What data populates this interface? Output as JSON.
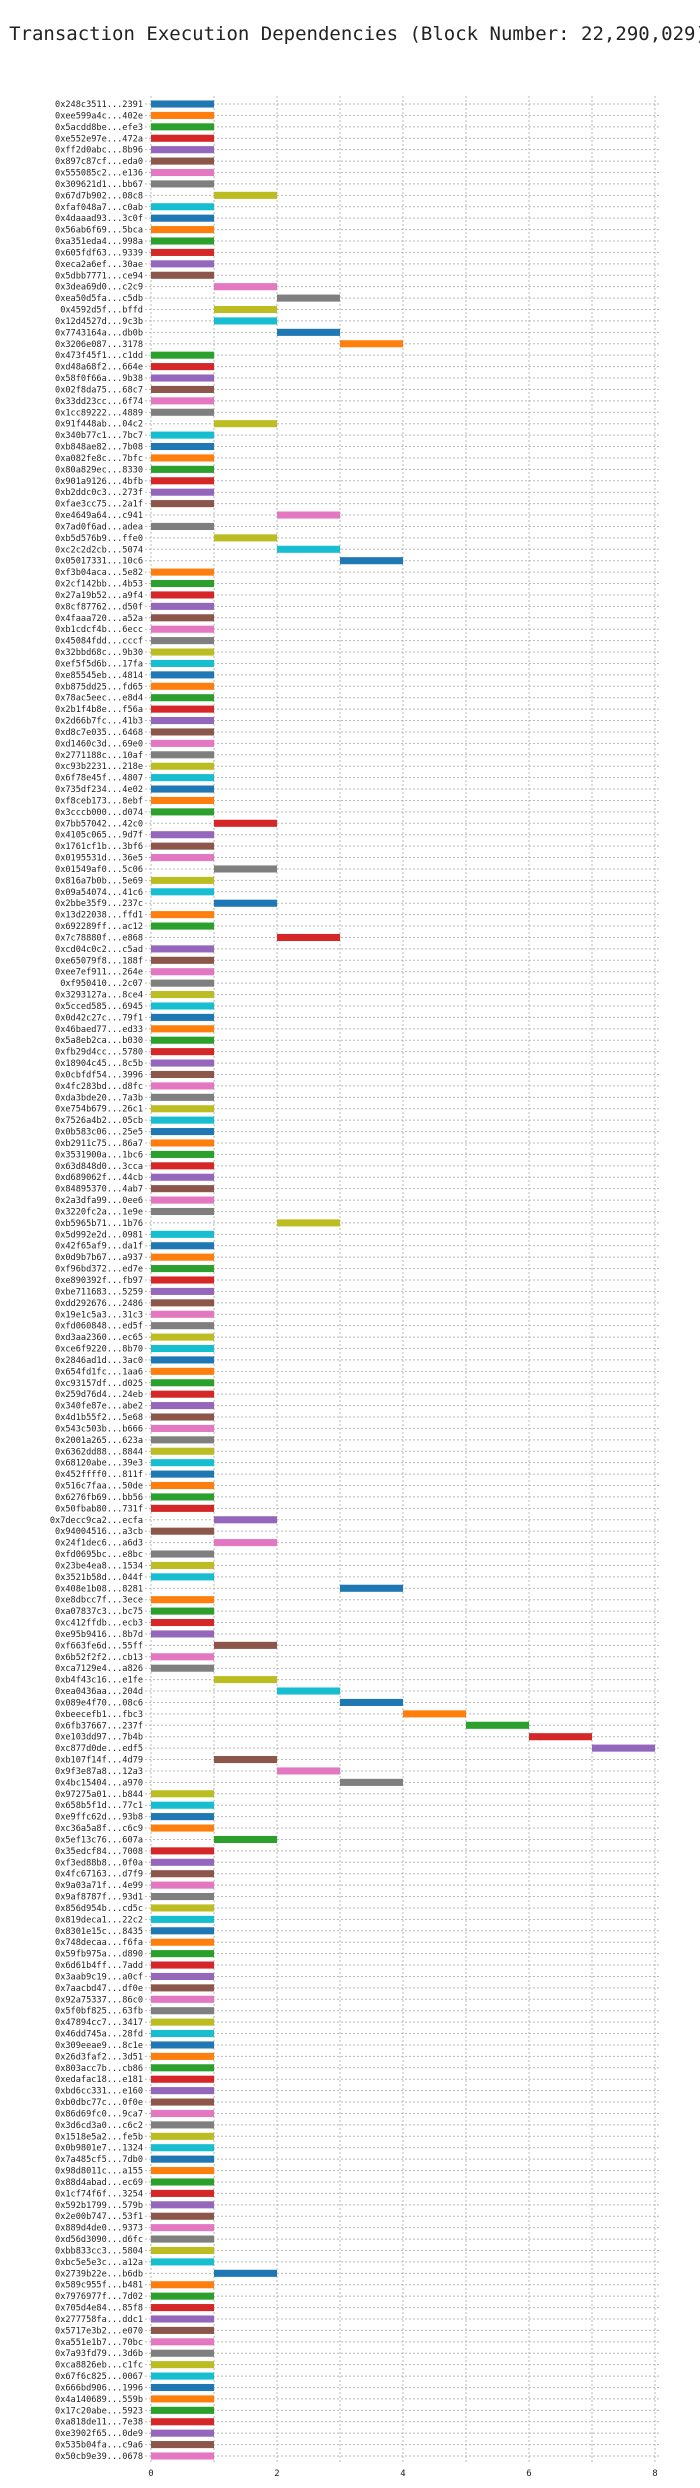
{
  "chart_data": {
    "type": "bar",
    "orientation": "horizontal",
    "title": "Transaction Execution Dependencies (Block Number: 22,290,029)",
    "xlabel": "",
    "ylabel": "",
    "xlim": [
      0,
      8
    ],
    "x_ticks": [
      0,
      2,
      4,
      6,
      8
    ],
    "grid": true,
    "palette": [
      "#1f77b4",
      "#ff7f0e",
      "#2ca02c",
      "#d62728",
      "#9467bd",
      "#8c564b",
      "#e377c2",
      "#7f7f7f",
      "#bcbd22",
      "#17becf"
    ],
    "transactions": [
      {
        "label": "0x248c3511...2391",
        "start": 0,
        "end": 1
      },
      {
        "label": "0xee599a4c...402e",
        "start": 0,
        "end": 1
      },
      {
        "label": "0x5acdd8be...efe3",
        "start": 0,
        "end": 1
      },
      {
        "label": "0xe552e97e...472a",
        "start": 0,
        "end": 1
      },
      {
        "label": "0xff2d0abc...8b96",
        "start": 0,
        "end": 1
      },
      {
        "label": "0x897c87cf...eda0",
        "start": 0,
        "end": 1
      },
      {
        "label": "0x555085c2...e136",
        "start": 0,
        "end": 1
      },
      {
        "label": "0x309621d1...bb67",
        "start": 0,
        "end": 1
      },
      {
        "label": "0x67d7b902...08c8",
        "start": 1,
        "end": 2
      },
      {
        "label": "0xfaf048a7...c0ab",
        "start": 0,
        "end": 1
      },
      {
        "label": "0x4daaad93...3c0f",
        "start": 0,
        "end": 1
      },
      {
        "label": "0x56ab6f69...5bca",
        "start": 0,
        "end": 1
      },
      {
        "label": "0xa351eda4...998a",
        "start": 0,
        "end": 1
      },
      {
        "label": "0x605fdf63...9339",
        "start": 0,
        "end": 1
      },
      {
        "label": "0xeca2a6ef...30ae",
        "start": 0,
        "end": 1
      },
      {
        "label": "0x5dbb7771...ce94",
        "start": 0,
        "end": 1
      },
      {
        "label": "0x3dea69d0...c2c9",
        "start": 1,
        "end": 2
      },
      {
        "label": "0xea50d5fa...c5db",
        "start": 2,
        "end": 3
      },
      {
        "label": "0x4592d5f...bffd",
        "start": 1,
        "end": 2
      },
      {
        "label": "0x12d4527d...9c3b",
        "start": 1,
        "end": 2
      },
      {
        "label": "0x7743164a...db0b",
        "start": 2,
        "end": 3
      },
      {
        "label": "0x3206e087...3178",
        "start": 3,
        "end": 4
      },
      {
        "label": "0x473f45f1...c1dd",
        "start": 0,
        "end": 1
      },
      {
        "label": "0xd48a68f2...664e",
        "start": 0,
        "end": 1
      },
      {
        "label": "0x58f0f66a...9b38",
        "start": 0,
        "end": 1
      },
      {
        "label": "0x02f8da75...68c7",
        "start": 0,
        "end": 1
      },
      {
        "label": "0x33dd23cc...6f74",
        "start": 0,
        "end": 1
      },
      {
        "label": "0x1cc89222...4889",
        "start": 0,
        "end": 1
      },
      {
        "label": "0x91f448ab...04c2",
        "start": 1,
        "end": 2
      },
      {
        "label": "0x340b77c1...7bc7",
        "start": 0,
        "end": 1
      },
      {
        "label": "0xb848ae82...7b08",
        "start": 0,
        "end": 1
      },
      {
        "label": "0xa082fe8c...7bfc",
        "start": 0,
        "end": 1
      },
      {
        "label": "0x80a829ec...8330",
        "start": 0,
        "end": 1
      },
      {
        "label": "0x901a9126...4bfb",
        "start": 0,
        "end": 1
      },
      {
        "label": "0xb2ddc0c3...273f",
        "start": 0,
        "end": 1
      },
      {
        "label": "0xfae3cc75...2a1f",
        "start": 0,
        "end": 1
      },
      {
        "label": "0xe4649a64...c941",
        "start": 2,
        "end": 3
      },
      {
        "label": "0x7ad0f6ad...adea",
        "start": 0,
        "end": 1
      },
      {
        "label": "0xb5d576b9...ffe0",
        "start": 1,
        "end": 2
      },
      {
        "label": "0xc2c2d2cb...5074",
        "start": 2,
        "end": 3
      },
      {
        "label": "0x05017331...10c6",
        "start": 3,
        "end": 4
      },
      {
        "label": "0xf3b04aca...5e82",
        "start": 0,
        "end": 1
      },
      {
        "label": "0x2cf142bb...4b53",
        "start": 0,
        "end": 1
      },
      {
        "label": "0x27a19b52...a9f4",
        "start": 0,
        "end": 1
      },
      {
        "label": "0x8cf87762...d50f",
        "start": 0,
        "end": 1
      },
      {
        "label": "0x4faaa720...a52a",
        "start": 0,
        "end": 1
      },
      {
        "label": "0xb1cdcf4b...6ecc",
        "start": 0,
        "end": 1
      },
      {
        "label": "0x45084fdd...cccf",
        "start": 0,
        "end": 1
      },
      {
        "label": "0x32bbd68c...9b30",
        "start": 0,
        "end": 1
      },
      {
        "label": "0xef5f5d6b...17fa",
        "start": 0,
        "end": 1
      },
      {
        "label": "0xe85545eb...4814",
        "start": 0,
        "end": 1
      },
      {
        "label": "0xb875dd25...fd65",
        "start": 0,
        "end": 1
      },
      {
        "label": "0x78ac5eec...e8d4",
        "start": 0,
        "end": 1
      },
      {
        "label": "0x2b1f4b8e...f56a",
        "start": 0,
        "end": 1
      },
      {
        "label": "0x2d66b7fc...41b3",
        "start": 0,
        "end": 1
      },
      {
        "label": "0xd8c7e035...6468",
        "start": 0,
        "end": 1
      },
      {
        "label": "0xd1460c3d...69e0",
        "start": 0,
        "end": 1
      },
      {
        "label": "0x2771188c...10af",
        "start": 0,
        "end": 1
      },
      {
        "label": "0xc93b2231...218e",
        "start": 0,
        "end": 1
      },
      {
        "label": "0x6f78e45f...4807",
        "start": 0,
        "end": 1
      },
      {
        "label": "0x735df234...4e02",
        "start": 0,
        "end": 1
      },
      {
        "label": "0xf8ceb173...8ebf",
        "start": 0,
        "end": 1
      },
      {
        "label": "0x3cccb000...d074",
        "start": 0,
        "end": 1
      },
      {
        "label": "0x7bb57042...42c0",
        "start": 1,
        "end": 2
      },
      {
        "label": "0x4105c065...9d7f",
        "start": 0,
        "end": 1
      },
      {
        "label": "0x1761cf1b...3bf6",
        "start": 0,
        "end": 1
      },
      {
        "label": "0x0195531d...36e5",
        "start": 0,
        "end": 1
      },
      {
        "label": "0x01549af0...5c06",
        "start": 1,
        "end": 2
      },
      {
        "label": "0x816a7b0b...5e69",
        "start": 0,
        "end": 1
      },
      {
        "label": "0x09a54074...41c6",
        "start": 0,
        "end": 1
      },
      {
        "label": "0x2bbe35f9...237c",
        "start": 1,
        "end": 2
      },
      {
        "label": "0x13d22038...ffd1",
        "start": 0,
        "end": 1
      },
      {
        "label": "0x692289ff...ac12",
        "start": 0,
        "end": 1
      },
      {
        "label": "0x7c78880f...e868",
        "start": 2,
        "end": 3
      },
      {
        "label": "0xcd04c0c2...c5ad",
        "start": 0,
        "end": 1
      },
      {
        "label": "0xe65079f8...188f",
        "start": 0,
        "end": 1
      },
      {
        "label": "0xee7ef911...264e",
        "start": 0,
        "end": 1
      },
      {
        "label": "0xf950410...2c07",
        "start": 0,
        "end": 1
      },
      {
        "label": "0x3293127a...8ce4",
        "start": 0,
        "end": 1
      },
      {
        "label": "0x5cced585...6945",
        "start": 0,
        "end": 1
      },
      {
        "label": "0x0d42c27c...79f1",
        "start": 0,
        "end": 1
      },
      {
        "label": "0x46baed77...ed33",
        "start": 0,
        "end": 1
      },
      {
        "label": "0x5a8eb2ca...b030",
        "start": 0,
        "end": 1
      },
      {
        "label": "0xfb29d4cc...5780",
        "start": 0,
        "end": 1
      },
      {
        "label": "0x18904c45...8c5b",
        "start": 0,
        "end": 1
      },
      {
        "label": "0x0cbfdf54...3996",
        "start": 0,
        "end": 1
      },
      {
        "label": "0x4fc283bd...d8fc",
        "start": 0,
        "end": 1
      },
      {
        "label": "0xda3bde20...7a3b",
        "start": 0,
        "end": 1
      },
      {
        "label": "0xe754b679...26c1",
        "start": 0,
        "end": 1
      },
      {
        "label": "0x7526a4b2...05cb",
        "start": 0,
        "end": 1
      },
      {
        "label": "0x0b583c06...25e5",
        "start": 0,
        "end": 1
      },
      {
        "label": "0xb2911c75...86a7",
        "start": 0,
        "end": 1
      },
      {
        "label": "0x3531900a...1bc6",
        "start": 0,
        "end": 1
      },
      {
        "label": "0x63d848d0...3cca",
        "start": 0,
        "end": 1
      },
      {
        "label": "0xd689062f...44cb",
        "start": 0,
        "end": 1
      },
      {
        "label": "0x84895370...4ab7",
        "start": 0,
        "end": 1
      },
      {
        "label": "0x2a3dfa99...0ee6",
        "start": 0,
        "end": 1
      },
      {
        "label": "0x3220fc2a...1e9e",
        "start": 0,
        "end": 1
      },
      {
        "label": "0xb5965b71...1b76",
        "start": 2,
        "end": 3
      },
      {
        "label": "0x5d992e2d...0981",
        "start": 0,
        "end": 1
      },
      {
        "label": "0x42f65af9...da1f",
        "start": 0,
        "end": 1
      },
      {
        "label": "0x0d9b7b67...a937",
        "start": 0,
        "end": 1
      },
      {
        "label": "0xf96bd372...ed7e",
        "start": 0,
        "end": 1
      },
      {
        "label": "0xe890392f...fb97",
        "start": 0,
        "end": 1
      },
      {
        "label": "0xbe711683...5259",
        "start": 0,
        "end": 1
      },
      {
        "label": "0xdd292676...2486",
        "start": 0,
        "end": 1
      },
      {
        "label": "0x19e1c5a3...31c3",
        "start": 0,
        "end": 1
      },
      {
        "label": "0xfd060848...ed5f",
        "start": 0,
        "end": 1
      },
      {
        "label": "0xd3aa2360...ec65",
        "start": 0,
        "end": 1
      },
      {
        "label": "0xce6f9220...8b70",
        "start": 0,
        "end": 1
      },
      {
        "label": "0x2846ad1d...3ac0",
        "start": 0,
        "end": 1
      },
      {
        "label": "0x654fd1fc...1aa6",
        "start": 0,
        "end": 1
      },
      {
        "label": "0xc93157df...d025",
        "start": 0,
        "end": 1
      },
      {
        "label": "0x259d76d4...24eb",
        "start": 0,
        "end": 1
      },
      {
        "label": "0x340fe87e...abe2",
        "start": 0,
        "end": 1
      },
      {
        "label": "0x4d1b55f2...5e68",
        "start": 0,
        "end": 1
      },
      {
        "label": "0x543c503b...b666",
        "start": 0,
        "end": 1
      },
      {
        "label": "0x2001a265...623a",
        "start": 0,
        "end": 1
      },
      {
        "label": "0x6362dd88...8844",
        "start": 0,
        "end": 1
      },
      {
        "label": "0x68120abe...39e3",
        "start": 0,
        "end": 1
      },
      {
        "label": "0x452ffff0...811f",
        "start": 0,
        "end": 1
      },
      {
        "label": "0x516c7faa...50de",
        "start": 0,
        "end": 1
      },
      {
        "label": "0x6276fb69...bb56",
        "start": 0,
        "end": 1
      },
      {
        "label": "0x50fbab80...731f",
        "start": 0,
        "end": 1
      },
      {
        "label": "0x7decc9ca2...ecfa",
        "start": 1,
        "end": 2
      },
      {
        "label": "0x94004516...a3cb",
        "start": 0,
        "end": 1
      },
      {
        "label": "0x24f1dec6...a6d3",
        "start": 1,
        "end": 2
      },
      {
        "label": "0xfd0695bc...e8bc",
        "start": 0,
        "end": 1
      },
      {
        "label": "0x23be4ea8...1534",
        "start": 0,
        "end": 1
      },
      {
        "label": "0x3521b58d...044f",
        "start": 0,
        "end": 1
      },
      {
        "label": "0x408e1b08...8281",
        "start": 3,
        "end": 4
      },
      {
        "label": "0xe8dbcc7f...3ece",
        "start": 0,
        "end": 1
      },
      {
        "label": "0xa07837c3...bc75",
        "start": 0,
        "end": 1
      },
      {
        "label": "0xc412ffdb...ecb3",
        "start": 0,
        "end": 1
      },
      {
        "label": "0xe95b9416...8b7d",
        "start": 0,
        "end": 1
      },
      {
        "label": "0xf663fe6d...55ff",
        "start": 1,
        "end": 2
      },
      {
        "label": "0x6b52f2f2...cb13",
        "start": 0,
        "end": 1
      },
      {
        "label": "0xca7129e4...a826",
        "start": 0,
        "end": 1
      },
      {
        "label": "0xb4f43c16...e1fe",
        "start": 1,
        "end": 2
      },
      {
        "label": "0xea0436aa...204d",
        "start": 2,
        "end": 3
      },
      {
        "label": "0x089e4f70...08c6",
        "start": 3,
        "end": 4
      },
      {
        "label": "0xbeecefb1...fbc3",
        "start": 4,
        "end": 5
      },
      {
        "label": "0x6fb37667...237f",
        "start": 5,
        "end": 6
      },
      {
        "label": "0xe103dd97...7b4b",
        "start": 6,
        "end": 7
      },
      {
        "label": "0xc877d0de...edf5",
        "start": 7,
        "end": 8
      },
      {
        "label": "0xb107f14f...4d79",
        "start": 1,
        "end": 2
      },
      {
        "label": "0x9f3e87a8...12a3",
        "start": 2,
        "end": 3
      },
      {
        "label": "0x4bc15404...a970",
        "start": 3,
        "end": 4
      },
      {
        "label": "0x97275a01...b844",
        "start": 0,
        "end": 1
      },
      {
        "label": "0x658b5f1d...77c1",
        "start": 0,
        "end": 1
      },
      {
        "label": "0xe9ffc62d...93b8",
        "start": 0,
        "end": 1
      },
      {
        "label": "0xc36a5a8f...c6c9",
        "start": 0,
        "end": 1
      },
      {
        "label": "0x5ef13c76...607a",
        "start": 1,
        "end": 2
      },
      {
        "label": "0x35edcf84...7008",
        "start": 0,
        "end": 1
      },
      {
        "label": "0xf3ed88b8...0f0a",
        "start": 0,
        "end": 1
      },
      {
        "label": "0x4fc67163...d7f9",
        "start": 0,
        "end": 1
      },
      {
        "label": "0x9a03a71f...4e99",
        "start": 0,
        "end": 1
      },
      {
        "label": "0x9af8787f...93d1",
        "start": 0,
        "end": 1
      },
      {
        "label": "0x856d954b...cd5c",
        "start": 0,
        "end": 1
      },
      {
        "label": "0x819deca1...22c2",
        "start": 0,
        "end": 1
      },
      {
        "label": "0x8301e15c...8435",
        "start": 0,
        "end": 1
      },
      {
        "label": "0x748decaa...f6fa",
        "start": 0,
        "end": 1
      },
      {
        "label": "0x59fb975a...d890",
        "start": 0,
        "end": 1
      },
      {
        "label": "0x6d61b4ff...7add",
        "start": 0,
        "end": 1
      },
      {
        "label": "0x3aab9c19...a0cf",
        "start": 0,
        "end": 1
      },
      {
        "label": "0x7aacbd47...df0e",
        "start": 0,
        "end": 1
      },
      {
        "label": "0x92a75337...86c0",
        "start": 0,
        "end": 1
      },
      {
        "label": "0x5f0bf825...63fb",
        "start": 0,
        "end": 1
      },
      {
        "label": "0x47894cc7...3417",
        "start": 0,
        "end": 1
      },
      {
        "label": "0x46dd745a...28fd",
        "start": 0,
        "end": 1
      },
      {
        "label": "0x309eeae9...8c1e",
        "start": 0,
        "end": 1
      },
      {
        "label": "0x26d3faf2...3d51",
        "start": 0,
        "end": 1
      },
      {
        "label": "0x803acc7b...cb86",
        "start": 0,
        "end": 1
      },
      {
        "label": "0xedafac18...e181",
        "start": 0,
        "end": 1
      },
      {
        "label": "0xbd6cc331...e160",
        "start": 0,
        "end": 1
      },
      {
        "label": "0xb0dbc77c...0f0e",
        "start": 0,
        "end": 1
      },
      {
        "label": "0x86d69fc0...9ca7",
        "start": 0,
        "end": 1
      },
      {
        "label": "0x3d6cd3a0...c6c2",
        "start": 0,
        "end": 1
      },
      {
        "label": "0x1518e5a2...fe5b",
        "start": 0,
        "end": 1
      },
      {
        "label": "0x0b9801e7...1324",
        "start": 0,
        "end": 1
      },
      {
        "label": "0x7a485cf5...7db0",
        "start": 0,
        "end": 1
      },
      {
        "label": "0x98d8011c...a155",
        "start": 0,
        "end": 1
      },
      {
        "label": "0x88d4abad...ec69",
        "start": 0,
        "end": 1
      },
      {
        "label": "0x1cf74f6f...3254",
        "start": 0,
        "end": 1
      },
      {
        "label": "0x592b1799...579b",
        "start": 0,
        "end": 1
      },
      {
        "label": "0x2e00b747...53f1",
        "start": 0,
        "end": 1
      },
      {
        "label": "0x889d4de0...9373",
        "start": 0,
        "end": 1
      },
      {
        "label": "0xd56d3090...d6fc",
        "start": 0,
        "end": 1
      },
      {
        "label": "0xbb833cc3...5804",
        "start": 0,
        "end": 1
      },
      {
        "label": "0xbc5e5e3c...a12a",
        "start": 0,
        "end": 1
      },
      {
        "label": "0x2739b22e...b6db",
        "start": 1,
        "end": 2
      },
      {
        "label": "0x589c955f...b481",
        "start": 0,
        "end": 1
      },
      {
        "label": "0x7976977f...7d02",
        "start": 0,
        "end": 1
      },
      {
        "label": "0x705d4e84...85f8",
        "start": 0,
        "end": 1
      },
      {
        "label": "0x277758fa...ddc1",
        "start": 0,
        "end": 1
      },
      {
        "label": "0x5717e3b2...e070",
        "start": 0,
        "end": 1
      },
      {
        "label": "0xa551e1b7...70bc",
        "start": 0,
        "end": 1
      },
      {
        "label": "0x7a93fd79...3d6b",
        "start": 0,
        "end": 1
      },
      {
        "label": "0xca8826eb...c1fc",
        "start": 0,
        "end": 1
      },
      {
        "label": "0x67f6c825...0067",
        "start": 0,
        "end": 1
      },
      {
        "label": "0x666bd906...1996",
        "start": 0,
        "end": 1
      },
      {
        "label": "0x4a140689...559b",
        "start": 0,
        "end": 1
      },
      {
        "label": "0x17c20abe...5923",
        "start": 0,
        "end": 1
      },
      {
        "label": "0xa818de11...7e38",
        "start": 0,
        "end": 1
      },
      {
        "label": "0xe3902f65...0de9",
        "start": 0,
        "end": 1
      },
      {
        "label": "0x535b04fa...c9a6",
        "start": 0,
        "end": 1
      },
      {
        "label": "0x50cb9e39...0678",
        "start": 0,
        "end": 1
      }
    ]
  }
}
